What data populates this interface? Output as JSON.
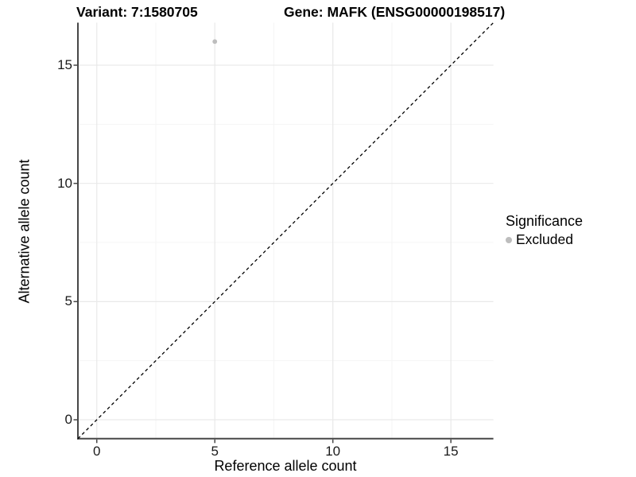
{
  "chart_data": {
    "type": "scatter",
    "titles": {
      "left": "Variant: 7:1580705",
      "right": "Gene: MAFK (ENSG00000198517)"
    },
    "xlabel": "Reference allele count",
    "ylabel": "Alternative allele count",
    "xlim": [
      -0.8,
      16.8
    ],
    "ylim": [
      -0.8,
      16.8
    ],
    "x_major_ticks": [
      0,
      5,
      10,
      15
    ],
    "y_major_ticks": [
      0,
      5,
      10,
      15
    ],
    "x_minor_gridlines": [
      2.5,
      7.5,
      12.5
    ],
    "y_minor_gridlines": [
      2.5,
      7.5,
      12.5
    ],
    "grid": "major and minor gridlines, very light gray on white panel",
    "points": [
      {
        "x": 5,
        "y": 16,
        "significance": "Excluded"
      }
    ],
    "reference_line": {
      "kind": "identity y=x",
      "style": "dashed",
      "color": "#000000",
      "from": [
        -0.8,
        -0.8
      ],
      "to": [
        16.8,
        16.8
      ]
    },
    "legend": {
      "position": "right",
      "title": "Significance",
      "items": [
        {
          "label": "Excluded",
          "marker": "circle",
          "color": "#bdbdbd"
        }
      ]
    },
    "colors": {
      "background": "#ffffff",
      "point": "#bdbdbd",
      "axis_line": "#474747",
      "tick_mark": "#474747",
      "grid_major": "#e9e9e9",
      "grid_minor": "#f5f5f5",
      "text": "#000000"
    }
  }
}
